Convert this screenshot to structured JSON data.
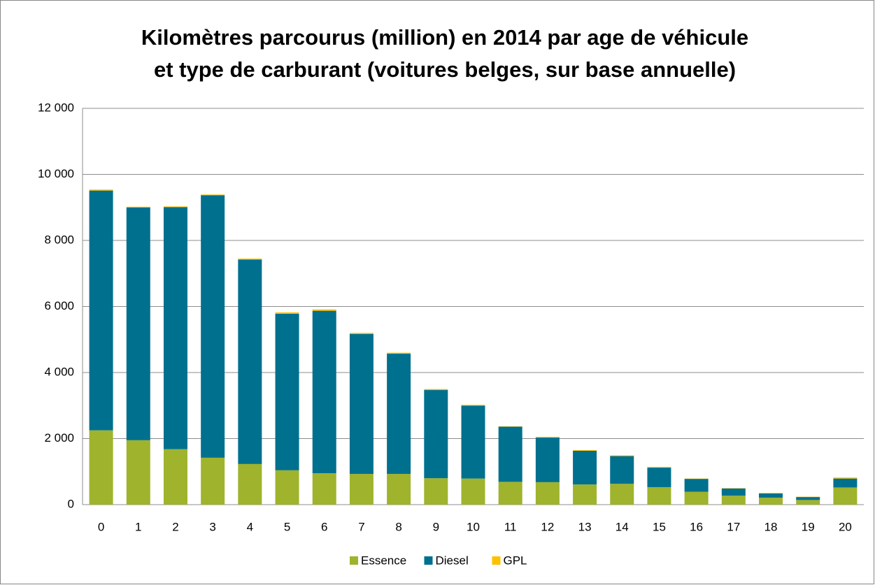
{
  "chart_data": {
    "type": "stacked_bar",
    "title": [
      "Kilomètres parcourus (million) en 2014 par age de véhicule",
      "et type de carburant (voitures belges, sur base annuelle)"
    ],
    "categories": [
      "0",
      "1",
      "2",
      "3",
      "4",
      "5",
      "6",
      "7",
      "8",
      "9",
      "10",
      "11",
      "12",
      "13",
      "14",
      "15",
      "16",
      "17",
      "18",
      "19",
      "20"
    ],
    "series": [
      {
        "name": "Essence",
        "color": "#9fb32c",
        "values": [
          2250,
          1950,
          1680,
          1420,
          1230,
          1040,
          950,
          930,
          930,
          800,
          790,
          690,
          680,
          610,
          630,
          530,
          390,
          270,
          210,
          140,
          520
        ]
      },
      {
        "name": "Diesel",
        "color": "#00708f",
        "values": [
          7260,
          7050,
          7330,
          7950,
          6190,
          4740,
          4920,
          4240,
          3640,
          2670,
          2210,
          1670,
          1350,
          1020,
          840,
          590,
          390,
          220,
          130,
          90,
          270
        ]
      },
      {
        "name": "GPL",
        "color": "#ffc000",
        "values": [
          30,
          20,
          20,
          20,
          30,
          40,
          40,
          30,
          30,
          30,
          20,
          10,
          20,
          20,
          20,
          20,
          10,
          10,
          10,
          10,
          30
        ]
      }
    ],
    "ylim": [
      0,
      12000
    ],
    "yticks": [
      0,
      {
        "value": 2000,
        "label": "2 000"
      },
      {
        "value": 4000,
        "label": "4 000"
      },
      {
        "value": 6000,
        "label": "6 000"
      },
      {
        "value": 8000,
        "label": "8 000"
      },
      {
        "value": 10000,
        "label": "10 000"
      },
      {
        "value": 12000,
        "label": "12 000"
      }
    ],
    "grid": true,
    "legend": "bottom"
  }
}
